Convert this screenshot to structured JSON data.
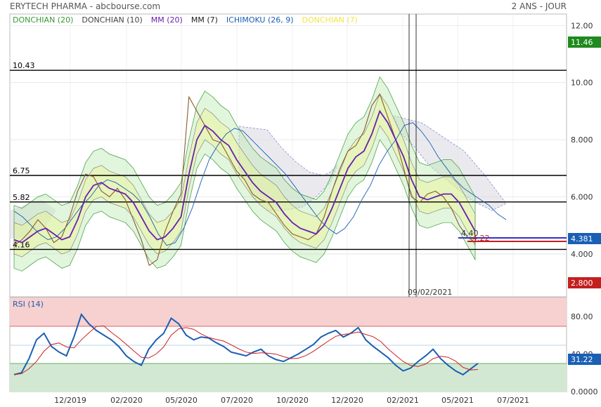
{
  "header": {
    "title": "ERYTECH PHARMA - abcbourse.com",
    "period": "2 ANS - JOUR"
  },
  "legend": [
    {
      "label": "DONCHIAN (20)",
      "color": "#3a9a3a"
    },
    {
      "label": "DONCHIAN (10)",
      "color": "#444444"
    },
    {
      "label": "MM (20)",
      "color": "#6a1fb0"
    },
    {
      "label": "MM (7)",
      "color": "#222222"
    },
    {
      "label": "ICHIMOKU (26, 9)",
      "color": "#1a5fb4"
    },
    {
      "label": "DONCHIAN (7)",
      "color": "#f2e34a"
    }
  ],
  "badges": {
    "high": "11.46",
    "current": "4.381",
    "low": "2.800",
    "rsi": "31.22"
  },
  "price_labels": {
    "a": "4.40",
    "b": "4.22"
  },
  "crosshair_label": "09/02/2021",
  "levels": [
    {
      "label": "10.43",
      "value": 10.43
    },
    {
      "label": "6.75",
      "value": 6.75
    },
    {
      "label": "5.82",
      "value": 5.82
    },
    {
      "label": "4.16",
      "value": 4.16
    }
  ],
  "price_axis": {
    "ticks": [
      "12.00",
      "10.00",
      "8.000",
      "6.000",
      "4.000"
    ],
    "values": [
      12,
      10,
      8,
      6,
      4
    ],
    "min": 2.5,
    "max": 12.4
  },
  "rsi_axis": {
    "title": "RSI (14)",
    "ticks": [
      "80.00",
      "40.00",
      "0.0000"
    ],
    "values": [
      80,
      40,
      0
    ]
  },
  "x_axis": {
    "ticks": [
      "12/2019",
      "02/2020",
      "05/2020",
      "07/2020",
      "10/2020",
      "12/2020",
      "02/2021",
      "05/2021",
      "07/2021"
    ]
  },
  "chart_data": {
    "type": "line",
    "series": [
      {
        "name": "MM (20)",
        "values": [
          4.5,
          4.4,
          4.6,
          4.8,
          4.9,
          4.7,
          4.5,
          4.6,
          5.2,
          6.0,
          6.4,
          6.5,
          6.3,
          6.2,
          6.1,
          5.8,
          5.3,
          4.8,
          4.5,
          4.6,
          4.9,
          5.3,
          6.8,
          8.0,
          8.5,
          8.3,
          8.0,
          7.8,
          7.3,
          6.9,
          6.5,
          6.2,
          6.0,
          5.8,
          5.4,
          5.1,
          4.9,
          4.8,
          4.7,
          5.0,
          5.6,
          6.3,
          7.0,
          7.4,
          7.6,
          8.2,
          9.0,
          8.6,
          8.0,
          7.4,
          6.6,
          6.0,
          5.9,
          6.0,
          6.1,
          6.1,
          5.8,
          5.3,
          4.8
        ]
      },
      {
        "name": "MM (7)",
        "values": [
          4.3,
          4.5,
          4.8,
          5.2,
          4.9,
          4.4,
          4.6,
          5.3,
          6.2,
          6.8,
          6.7,
          6.2,
          6.0,
          6.3,
          5.9,
          5.2,
          4.5,
          3.6,
          3.8,
          4.8,
          5.5,
          6.1,
          9.5,
          9.0,
          8.5,
          8.0,
          7.9,
          7.4,
          6.9,
          6.6,
          6.1,
          5.9,
          5.8,
          5.4,
          5.0,
          4.7,
          4.6,
          4.5,
          4.7,
          5.3,
          6.2,
          7.0,
          7.6,
          7.8,
          8.3,
          9.2,
          9.6,
          8.8,
          8.0,
          7.0,
          6.0,
          5.8,
          6.1,
          6.2,
          6.0,
          5.6,
          5.0,
          4.6,
          4.4
        ]
      },
      {
        "name": "ICHIMOKU (26, 9)",
        "values": [
          5.5,
          5.3,
          5.0,
          4.7,
          4.5,
          4.6,
          4.9,
          5.3,
          5.7,
          6.0,
          6.4,
          6.6,
          6.5,
          6.3,
          6.1,
          5.8,
          5.3,
          4.7,
          4.3,
          4.4,
          4.9,
          5.6,
          6.5,
          7.3,
          7.8,
          8.2,
          8.4,
          8.3,
          8.0,
          7.7,
          7.4,
          7.1,
          6.8,
          6.4,
          6.0,
          5.6,
          5.2,
          4.9,
          4.7,
          4.9,
          5.3,
          5.9,
          6.4,
          7.1,
          7.6,
          8.0,
          8.5,
          8.6,
          8.3,
          7.9,
          7.4,
          7.0,
          6.6,
          6.3,
          6.1,
          5.9,
          5.7,
          5.4,
          5.2
        ]
      },
      {
        "name": "RSI (14)",
        "values": [
          18,
          20,
          35,
          55,
          62,
          48,
          42,
          38,
          58,
          82,
          72,
          65,
          60,
          55,
          48,
          38,
          32,
          28,
          45,
          55,
          62,
          78,
          72,
          60,
          55,
          58,
          57,
          52,
          48,
          42,
          40,
          38,
          42,
          45,
          38,
          34,
          32,
          36,
          40,
          45,
          50,
          58,
          62,
          65,
          58,
          62,
          68,
          55,
          48,
          42,
          36,
          28,
          22,
          25,
          32,
          38,
          45,
          35,
          28,
          22,
          18,
          24,
          30
        ]
      }
    ],
    "ylim": [
      2.5,
      12.4
    ],
    "rsi_ylim": [
      0,
      100
    ],
    "rsi_zones": {
      "overbought": 70,
      "oversold": 30
    }
  }
}
